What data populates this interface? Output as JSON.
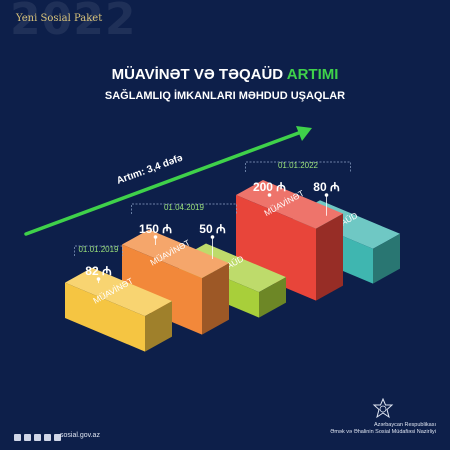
{
  "header": {
    "year": "2022",
    "package_label": "Yeni Sosial Paket"
  },
  "title": {
    "part1": "MÜAVİNƏT VƏ TƏQAÜD ",
    "part2": "ARTIMI",
    "subtitle": "SAĞLAMLIQ İMKANLARI MƏHDUD UŞAQLAR"
  },
  "colors": {
    "background": "#0d1f4a",
    "accent_green": "#3fd14a",
    "date_label": "#9be27a"
  },
  "chart_data": {
    "type": "bar",
    "title": "MÜAVİNƏT VƏ TƏQAÜD ARTIMI",
    "subtitle": "SAĞLAMLIQ İMKANLARI MƏHDUD UŞAQLAR",
    "currency_symbol": "₼",
    "growth_label": "Artım: 3,4 dəfə",
    "groups": [
      {
        "date": "01.01.2019",
        "bars": [
          {
            "label": "MÜAVİNƏT",
            "value": 82,
            "value_text": "82",
            "color": "#f5c542"
          }
        ]
      },
      {
        "date": "01.04.2019",
        "bars": [
          {
            "label": "MÜAVİNƏT",
            "value": 150,
            "value_text": "150",
            "color": "#f2883a"
          },
          {
            "label": "TƏQAÜD",
            "value": 50,
            "value_text": "50",
            "color": "#a8cf3a"
          }
        ]
      },
      {
        "date": "01.01.2022",
        "bars": [
          {
            "label": "MÜAVİNƏT",
            "value": 200,
            "value_text": "200",
            "color": "#e8453a"
          },
          {
            "label": "TƏQAÜD",
            "value": 80,
            "value_text": "80",
            "color": "#3fb6b0"
          }
        ]
      }
    ]
  },
  "footer": {
    "website": "sosial.gov.az",
    "ministry_line1": "Azərbaycan Respublikası",
    "ministry_line2": "Əmək və Əhalinin Sosial Müdafiəsi Nazirliyi"
  }
}
